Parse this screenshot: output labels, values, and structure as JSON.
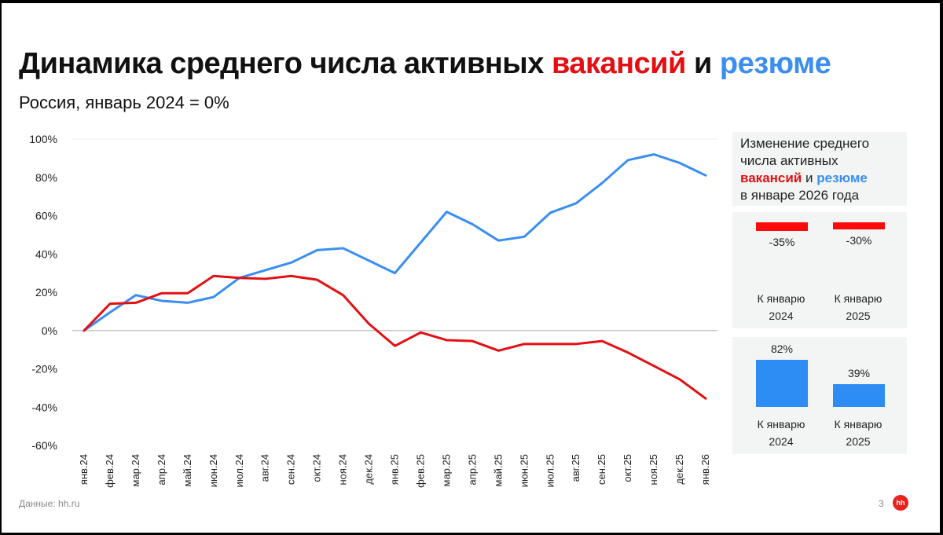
{
  "header": {
    "title_part1": "Динамика среднего числа активных ",
    "title_vacancies": "вакансий",
    "title_and": " и ",
    "title_resumes": "резюме",
    "subtitle": "Россия, январь 2024 = 0%"
  },
  "colors": {
    "vacancies": "#e30f13",
    "resumes": "#3a8ef0",
    "bar_vacancies": "#ff0a0a",
    "bar_resumes": "#2e8df5",
    "panel_bg": "#f3f5f4"
  },
  "side_panel": {
    "line1": "Изменение среднего",
    "line2": "числа активных",
    "vacancies_word": "вакансий",
    "and_word": " и ",
    "resumes_word": "резюме",
    "line4": "в январе 2026 года",
    "vacancies_bars": [
      {
        "value": -35,
        "label": "-35%",
        "caption_line1": "К январю",
        "caption_line2": "2024"
      },
      {
        "value": -30,
        "label": "-30%",
        "caption_line1": "К январю",
        "caption_line2": "2025"
      }
    ],
    "resumes_bars": [
      {
        "value": 82,
        "label": "82%",
        "caption_line1": "К январю",
        "caption_line2": "2024"
      },
      {
        "value": 39,
        "label": "39%",
        "caption_line1": "К январю",
        "caption_line2": "2025"
      }
    ]
  },
  "chart_data": {
    "type": "line",
    "x": [
      "янв.24",
      "фев.24",
      "мар.24",
      "апр.24",
      "май.24",
      "июн.24",
      "июл.24",
      "авг.24",
      "сен.24",
      "окт.24",
      "ноя.24",
      "дек.24",
      "янв.25",
      "фев.25",
      "мар.25",
      "апр.25",
      "май.25",
      "июн.25",
      "июл.25",
      "авг.25",
      "сен.25",
      "окт.25",
      "ноя.25",
      "дек.25",
      "янв.26"
    ],
    "series": [
      {
        "key": "vacancies",
        "values": [
          0,
          14,
          14.5,
          19.5,
          19.5,
          28.5,
          27.5,
          27,
          28.5,
          26.5,
          18.5,
          3.5,
          -8,
          -1,
          -5,
          -5.5,
          -10.5,
          -7,
          -7,
          -7,
          -5.5,
          -11.5,
          -18.5,
          -25.5,
          -35.5
        ]
      },
      {
        "key": "resumes",
        "values": [
          0,
          9.5,
          18.5,
          15.5,
          14.5,
          17.5,
          27.5,
          31.5,
          35.5,
          42,
          43,
          36.5,
          30,
          46,
          62,
          55.5,
          47,
          49,
          61.5,
          66.5,
          77,
          89,
          92,
          87.5,
          81
        ]
      }
    ],
    "ylim": [
      -60,
      100
    ],
    "yticks": [
      100,
      80,
      60,
      40,
      20,
      0,
      -20,
      -40,
      -60
    ],
    "ytick_labels": [
      "100%",
      "80%",
      "60%",
      "40%",
      "20%",
      "0%",
      "-20%",
      "-40%",
      "-60%"
    ],
    "grid": "horizontal at 100% and 0%"
  },
  "footer": {
    "source": "Данные: hh.ru",
    "page": "3",
    "logo": "hh"
  }
}
